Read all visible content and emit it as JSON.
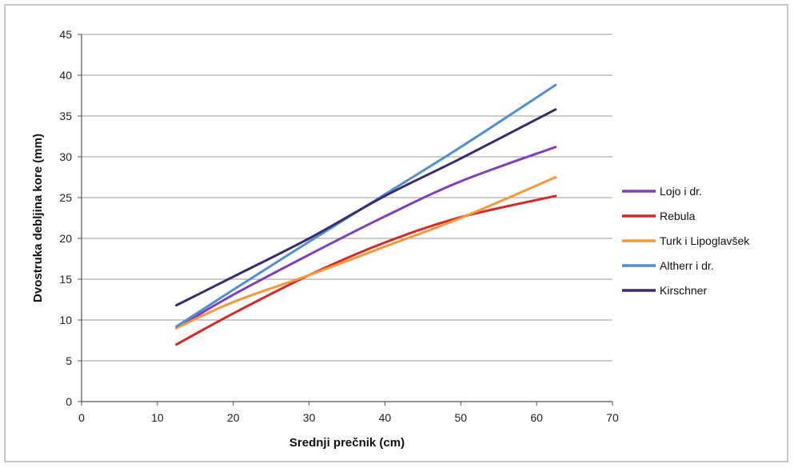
{
  "chart_data": {
    "type": "line",
    "title": "",
    "xlabel": "Srednji prečnik (cm)",
    "ylabel": "Dvostruka debljina kore (mm)",
    "xlim": [
      0,
      70
    ],
    "ylim": [
      0,
      45
    ],
    "xticks": [
      0,
      10,
      20,
      30,
      40,
      50,
      60,
      70
    ],
    "yticks": [
      0,
      5,
      10,
      15,
      20,
      25,
      30,
      35,
      40,
      45
    ],
    "grid": "horizontal",
    "legend_position": "right",
    "series": [
      {
        "name": "Lojo i dr.",
        "color": "#7f3fbf",
        "x": [
          12.5,
          20,
          30,
          40,
          50,
          62.5
        ],
        "y": [
          9.0,
          13.1,
          18.0,
          22.7,
          27.0,
          31.2
        ]
      },
      {
        "name": "Rebula",
        "color": "#d42a2a",
        "x": [
          12.5,
          20,
          30,
          40,
          50,
          62.5
        ],
        "y": [
          7.0,
          10.8,
          15.5,
          19.5,
          22.6,
          25.2
        ]
      },
      {
        "name": "Turk i Lipoglavšek",
        "color": "#f7983a",
        "x": [
          12.5,
          20,
          30,
          40,
          50,
          62.5
        ],
        "y": [
          9.0,
          12.2,
          15.5,
          19.0,
          22.5,
          27.5
        ]
      },
      {
        "name": "Altherr i dr.",
        "color": "#4f8fd2",
        "x": [
          12.5,
          20,
          30,
          40,
          50,
          62.5
        ],
        "y": [
          9.2,
          13.7,
          19.6,
          25.4,
          31.2,
          38.8
        ]
      },
      {
        "name": "Kirschner",
        "color": "#3b2b6b",
        "x": [
          12.5,
          20,
          30,
          40,
          50,
          62.5
        ],
        "y": [
          11.8,
          15.3,
          20.0,
          25.2,
          29.8,
          35.8
        ]
      }
    ]
  }
}
